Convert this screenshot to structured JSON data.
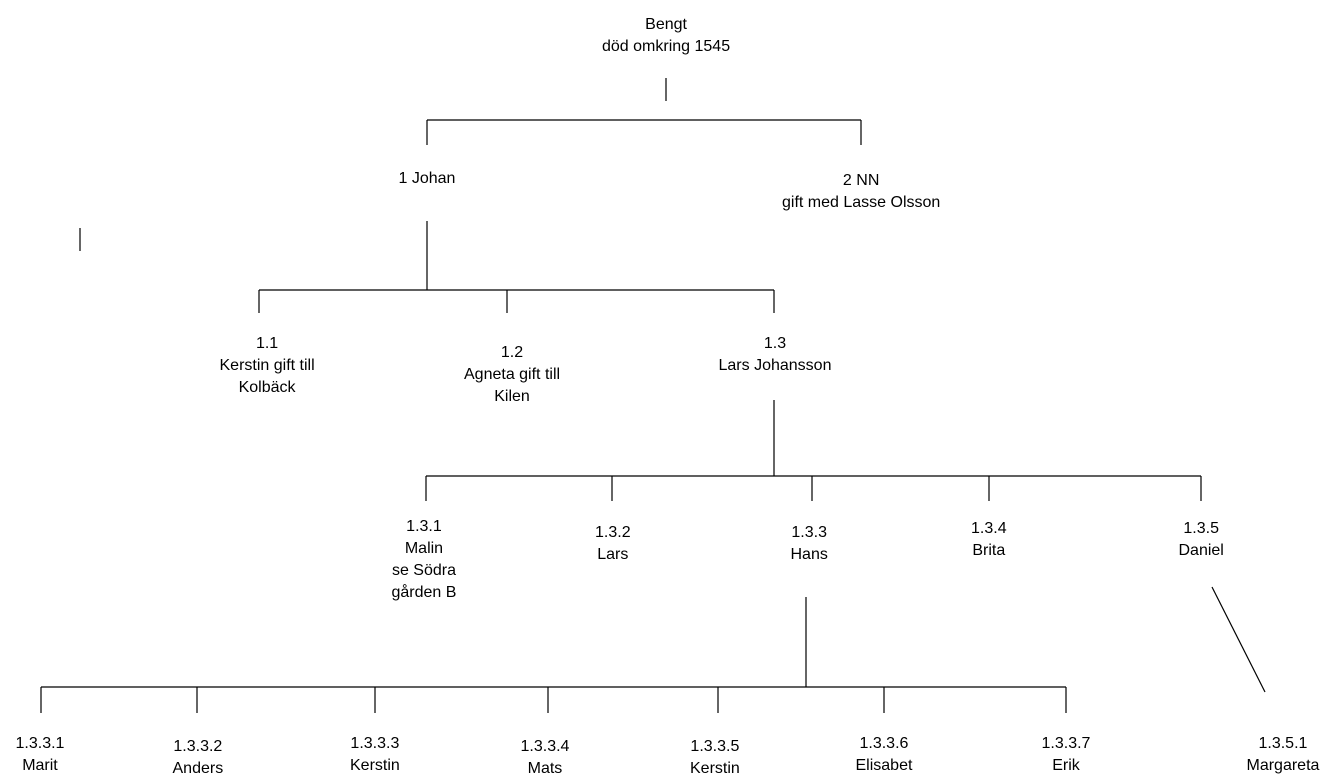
{
  "nodes": {
    "bengt": [
      "Bengt",
      "död omkring 1545"
    ],
    "johan": [
      "1 Johan"
    ],
    "nn": [
      "2 NN",
      "gift med Lasse Olsson"
    ],
    "n1_1": [
      "1.1",
      "Kerstin gift till",
      "Kolbäck"
    ],
    "n1_2": [
      "1.2",
      "Agneta gift till",
      "Kilen"
    ],
    "n1_3": [
      "1.3",
      "Lars Johansson"
    ],
    "n1_3_1": [
      "1.3.1",
      "Malin",
      "se Södra",
      "gården B"
    ],
    "n1_3_2": [
      "1.3.2",
      "Lars"
    ],
    "n1_3_3": [
      "1.3.3",
      "Hans"
    ],
    "n1_3_4": [
      "1.3.4",
      "Brita"
    ],
    "n1_3_5": [
      "1.3.5",
      "Daniel"
    ],
    "n1_3_3_1": [
      "1.3.3.1",
      "Marit"
    ],
    "n1_3_3_2": [
      "1.3.3.2",
      "Anders"
    ],
    "n1_3_3_3": [
      "1.3.3.3",
      "Kerstin"
    ],
    "n1_3_3_4": [
      "1.3.3.4",
      "Mats"
    ],
    "n1_3_3_5": [
      "1.3.3.5",
      "Kerstin"
    ],
    "n1_3_3_6": [
      "1.3.3.6",
      "Elisabet"
    ],
    "n1_3_3_7": [
      "1.3.3.7",
      "Erik"
    ],
    "n1_3_5_1": [
      "1.3.5.1",
      "Margareta"
    ]
  }
}
